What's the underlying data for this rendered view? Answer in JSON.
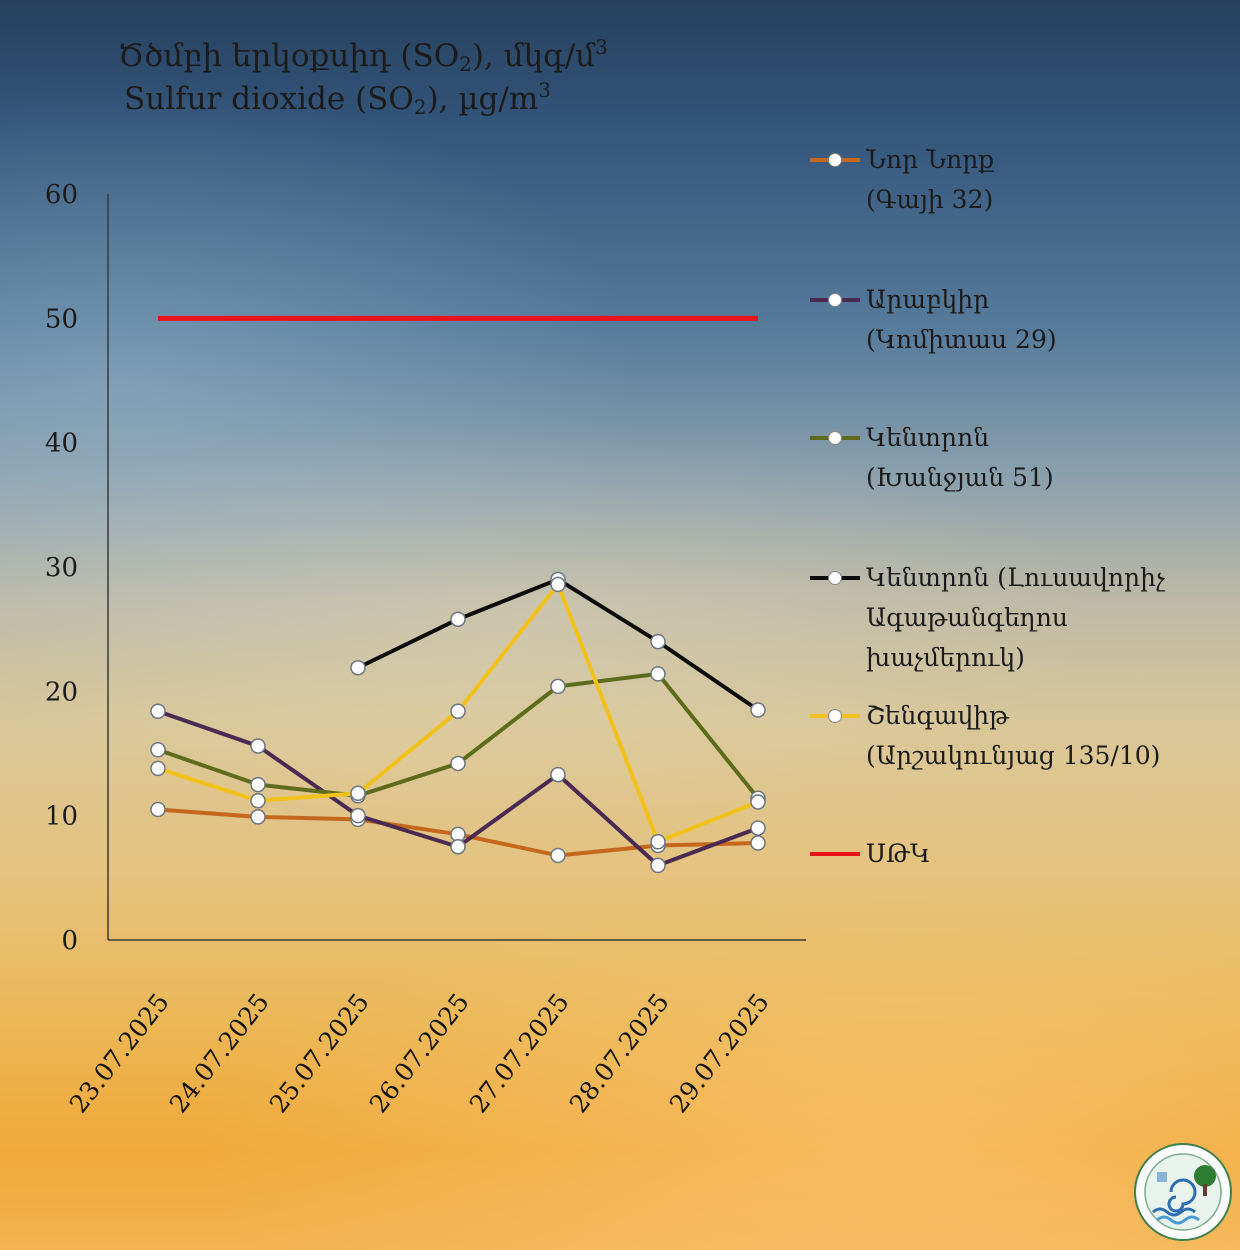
{
  "title": {
    "armenian": {
      "pre": "Ծծմբի երկօքսիդ (SO",
      "sub": "2",
      "post": "), մկգ/մ",
      "sup": "3"
    },
    "english": {
      "pre": "Sulfur dioxide (SO",
      "sub": "2",
      "post": "), µg/m",
      "sup": "3"
    }
  },
  "chart_data": {
    "type": "line",
    "categories": [
      "23.07.2025",
      "24.07.2025",
      "25.07.2025",
      "26.07.2025",
      "27.07.2025",
      "28.07.2025",
      "29.07.2025"
    ],
    "ylim": [
      0,
      60
    ],
    "yticks": [
      "0",
      "10",
      "20",
      "30",
      "40",
      "50",
      "60"
    ],
    "grid": false,
    "legend": "right",
    "series": [
      {
        "name": "Նոր Նորք (Գայի 32)",
        "color": "#c5681e",
        "values": [
          10.5,
          9.9,
          9.7,
          8.5,
          6.8,
          7.6,
          7.8
        ]
      },
      {
        "name": "Արաբկիր (Կոմիտաս 29)",
        "color": "#4a2a52",
        "values": [
          18.4,
          15.6,
          10.0,
          7.5,
          13.3,
          6.0,
          9.0
        ]
      },
      {
        "name": "Կենտրոն (Խանջյան 51)",
        "color": "#5e6b1c",
        "values": [
          15.3,
          12.5,
          11.6,
          14.2,
          20.4,
          21.4,
          11.4
        ]
      },
      {
        "name": "Կենտրոն (Լուսավորիչ Ագաթանգեղոս խաչմերուկ)",
        "color": "#0c0c0c",
        "values": [
          null,
          null,
          21.9,
          25.8,
          29.0,
          24.0,
          18.5
        ]
      },
      {
        "name": "Շենգավիթ (Արշակունյաց 135/10)",
        "color": "#f2c21b",
        "values": [
          13.8,
          11.2,
          11.8,
          18.4,
          28.6,
          7.9,
          11.1
        ]
      },
      {
        "name": "ՍԹԿ",
        "color": "#e8141a",
        "values": [
          50,
          50,
          50,
          50,
          50,
          50,
          50
        ],
        "markers": false
      }
    ]
  },
  "legend_items": [
    {
      "line1": "Նոր Նորք",
      "line2": "(Գայի 32)"
    },
    {
      "line1": "Արաբկիր",
      "line2": "(Կոմիտաս 29)"
    },
    {
      "line1": "Կենտրոն",
      "line2": "(Խանջյան 51)"
    },
    {
      "line1": "Կենտրոն (Լուսավորիչ",
      "line2": "Ագաթանգեղոս",
      "line3": "խաչմերուկ)"
    },
    {
      "line1": "Շենգավիթ",
      "line2": "(Արշակունյաց 135/10)"
    },
    {
      "line1": "ՍԹԿ"
    }
  ]
}
